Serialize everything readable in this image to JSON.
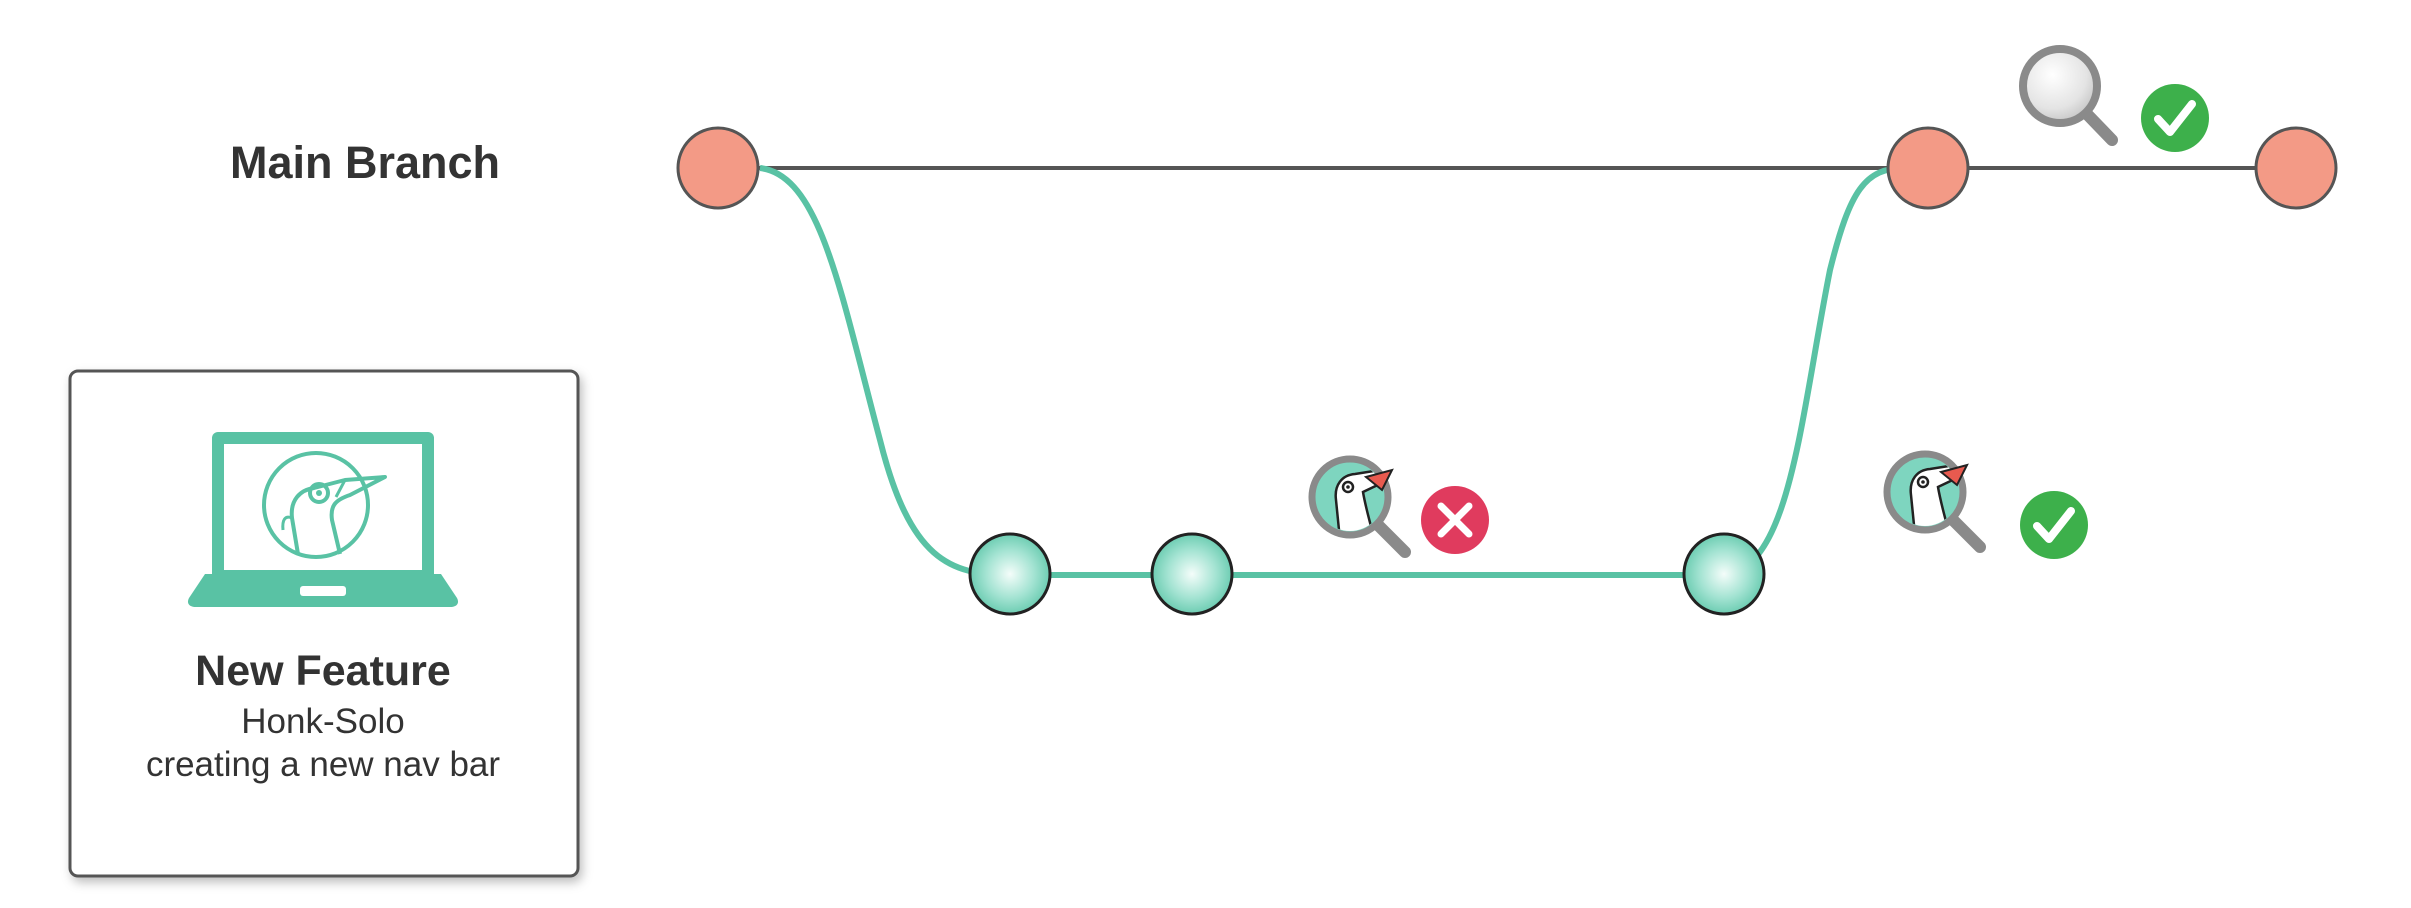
{
  "main_branch": {
    "label": "Main Branch"
  },
  "feature_card": {
    "title": "New Feature",
    "author": "Honk-Solo",
    "description": "creating a new nav bar",
    "icon": "laptop-with-goose-icon"
  },
  "colors": {
    "main_commit": "#F39A86",
    "feature_commit": "#7ED5BF",
    "feature_line": "#59C2A4",
    "main_line": "#555555",
    "success": "#3DB04B",
    "failure": "#E03B5E",
    "review_ring": "#8A8A8A"
  },
  "review_events": [
    {
      "on": "feature branch",
      "reviewer": "goose-reviewer-icon",
      "status": "failed",
      "status_icon": "x-icon"
    },
    {
      "on": "merge into main",
      "reviewer": "goose-reviewer-icon",
      "status": "passed",
      "status_icon": "check-icon"
    },
    {
      "on": "main branch",
      "reviewer": "magnifier-icon",
      "status": "passed",
      "status_icon": "check-icon"
    }
  ]
}
